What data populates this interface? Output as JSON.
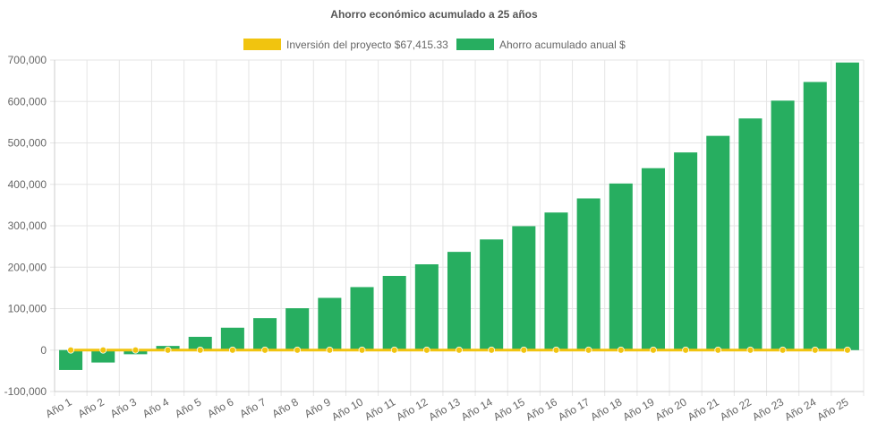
{
  "chart_data": {
    "type": "bar",
    "title": "Ahorro económico acumulado a 25 años",
    "categories": [
      "Año 1",
      "Año 2",
      "Año 3",
      "Año 4",
      "Año 5",
      "Año 6",
      "Año 7",
      "Año 8",
      "Año 9",
      "Año 10",
      "Año 11",
      "Año 12",
      "Año 13",
      "Año 14",
      "Año 15",
      "Año 16",
      "Año 17",
      "Año 18",
      "Año 19",
      "Año 20",
      "Año 21",
      "Año 22",
      "Año 23",
      "Año 24",
      "Año 25"
    ],
    "series": [
      {
        "name": "Inversión del proyecto $67,415.33",
        "kind": "line",
        "color": "#f1c40f",
        "values": [
          0,
          0,
          0,
          0,
          0,
          0,
          0,
          0,
          0,
          0,
          0,
          0,
          0,
          0,
          0,
          0,
          0,
          0,
          0,
          0,
          0,
          0,
          0,
          0,
          0
        ]
      },
      {
        "name": "Ahorro acumulado anual $",
        "kind": "bar",
        "color": "#27ae60",
        "values": [
          -48000,
          -30000,
          -10000,
          10000,
          32000,
          54000,
          77000,
          101000,
          126000,
          152000,
          179000,
          207000,
          237000,
          267000,
          299000,
          332000,
          366000,
          402000,
          439000,
          477000,
          517000,
          559000,
          602000,
          647000,
          694000
        ]
      }
    ],
    "ylim": [
      -100000,
      700000
    ],
    "yticks": [
      "-100,000",
      "0",
      "100,000",
      "200,000",
      "300,000",
      "400,000",
      "500,000",
      "600,000",
      "700,000"
    ],
    "ytick_values": [
      -100000,
      0,
      100000,
      200000,
      300000,
      400000,
      500000,
      600000,
      700000
    ],
    "grid": true,
    "legend_position": "top"
  }
}
